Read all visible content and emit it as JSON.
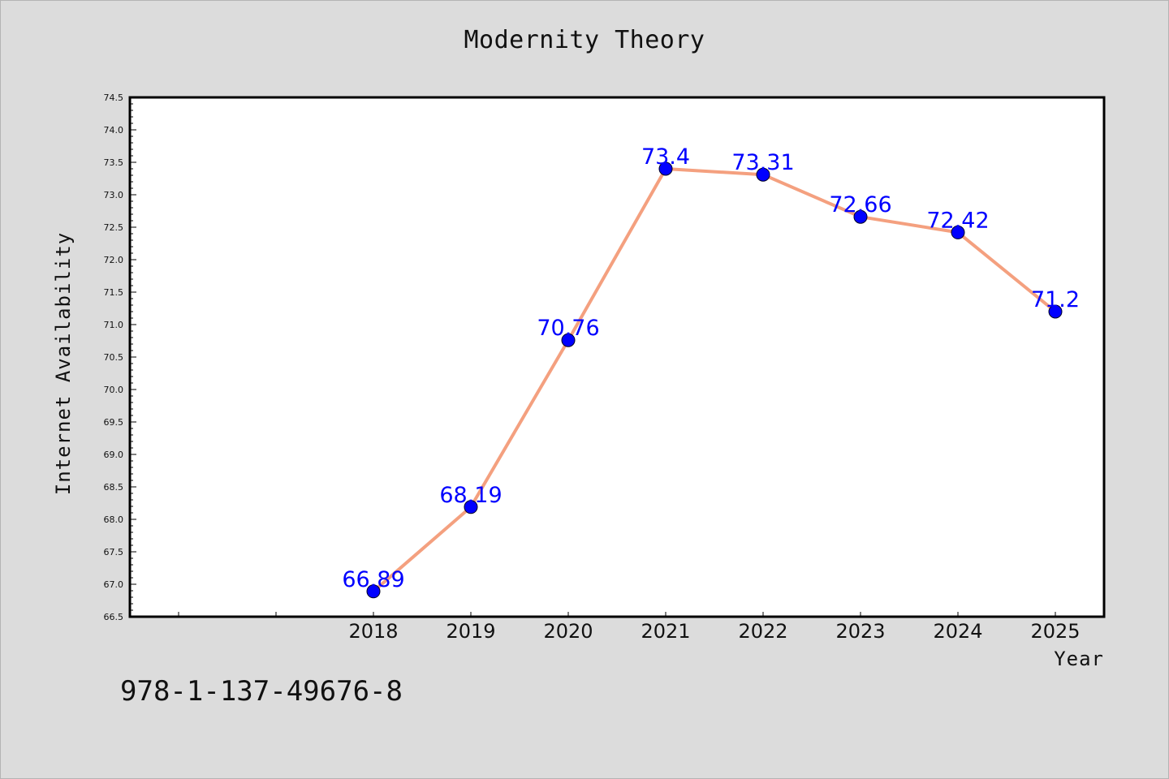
{
  "title": "Modernity Theory",
  "footer_text": "978-1-137-49676-8",
  "colors": {
    "background": "#dcdcdc",
    "plot_background": "#ffffff",
    "line": "#f4a07f",
    "marker": "#0000ff",
    "data_label": "#0000ff"
  },
  "chart_data": {
    "type": "line",
    "title": "Modernity Theory",
    "xlabel": "Year",
    "ylabel": "Internet Availability",
    "categories": [
      "2018",
      "2019",
      "2020",
      "2021",
      "2022",
      "2023",
      "2024",
      "2025"
    ],
    "x": [
      2018,
      2019,
      2020,
      2021,
      2022,
      2023,
      2024,
      2025
    ],
    "xlim": [
      2015.5,
      2025.5
    ],
    "ylim": [
      66.5,
      74.5
    ],
    "yticks": [
      66.5,
      67.0,
      67.5,
      68.0,
      68.5,
      69.0,
      69.5,
      70.0,
      70.5,
      71.0,
      71.5,
      72.0,
      72.5,
      73.0,
      73.5,
      74.0,
      74.5
    ],
    "series": [
      {
        "values": [
          66.89,
          68.19,
          70.76,
          73.4,
          73.31,
          72.66,
          72.42,
          71.2
        ],
        "labels": [
          "66.89",
          "68.19",
          "70.76",
          "73.4",
          "73.31",
          "72.66",
          "72.42",
          "71.2"
        ]
      }
    ],
    "grid": false,
    "legend": "none"
  }
}
